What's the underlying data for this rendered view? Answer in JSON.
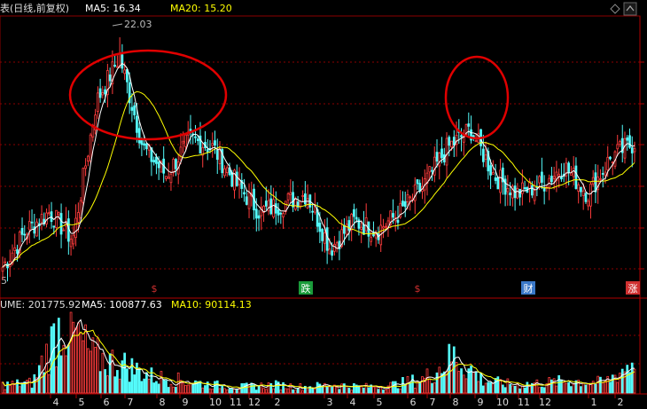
{
  "header": {
    "prefix": "表(日线,前复权)",
    "ma5_label": "MA5: 16.34",
    "ma20_label": "MA20: 15.20"
  },
  "price_panel": {
    "peak_label": "22.03",
    "left_tick": "5"
  },
  "event_markers": [
    {
      "label": "$",
      "color": "#d03030"
    },
    {
      "label": "跌",
      "color": "#1a9c3a"
    },
    {
      "label": "$",
      "color": "#d03030"
    },
    {
      "label": "财",
      "color": "#3a78c8"
    },
    {
      "label": "涨",
      "color": "#d03030"
    }
  ],
  "volume_header": {
    "vol_label": "UME: 201775.92",
    "ma5_label": "MA5: 100877.63",
    "ma10_label": "MA10: 90114.13"
  },
  "x_axis_months": [
    "4",
    "5",
    "6",
    "7",
    "8",
    "9",
    "10",
    "11",
    "12",
    "2",
    "3",
    "4",
    "5",
    "6",
    "7",
    "8",
    "9",
    "10",
    "11",
    "12",
    "1",
    "2"
  ],
  "colors": {
    "background": "#000000",
    "up": "#ff3c3c",
    "down": "#54fcfc",
    "ma5": "#ffffff",
    "ma20": "#ffff00",
    "grid": "#8b0000",
    "annotation": "#e00000"
  },
  "chart_data": {
    "type": "candlestick",
    "title": "",
    "indicators": [
      "MA5",
      "MA20"
    ],
    "peak_high": 22.03,
    "ma5_last": 16.34,
    "ma20_last": 15.2,
    "close_series": [
      {
        "period": "start",
        "value": 9.5
      },
      {
        "period": "4",
        "value": 11.5
      },
      {
        "period": "5",
        "value": 12.5
      },
      {
        "period": "5-late",
        "value": 11.0
      },
      {
        "period": "6",
        "value": 18.5
      },
      {
        "period": "6-peak",
        "value": 21.0
      },
      {
        "period": "7",
        "value": 16.0
      },
      {
        "period": "7-late",
        "value": 14.5
      },
      {
        "period": "8",
        "value": 16.5
      },
      {
        "period": "9",
        "value": 16.0
      },
      {
        "period": "10",
        "value": 14.0
      },
      {
        "period": "11",
        "value": 12.5
      },
      {
        "period": "12",
        "value": 13.0
      },
      {
        "period": "2",
        "value": 13.5
      },
      {
        "period": "3",
        "value": 10.5
      },
      {
        "period": "4",
        "value": 12.0
      },
      {
        "period": "5",
        "value": 11.5
      },
      {
        "period": "6",
        "value": 12.5
      },
      {
        "period": "7",
        "value": 14.0
      },
      {
        "period": "8",
        "value": 16.0
      },
      {
        "period": "8-spike",
        "value": 17.0
      },
      {
        "period": "9",
        "value": 14.5
      },
      {
        "period": "10",
        "value": 13.5
      },
      {
        "period": "11",
        "value": 14.0
      },
      {
        "period": "12",
        "value": 15.0
      },
      {
        "period": "1",
        "value": 13.5
      },
      {
        "period": "2",
        "value": 15.5
      },
      {
        "period": "end",
        "value": 16.3
      }
    ],
    "volume_series": [
      {
        "period": "4",
        "value": 20000
      },
      {
        "period": "5",
        "value": 25000
      },
      {
        "period": "6",
        "value": 180000
      },
      {
        "period": "7",
        "value": 90000
      },
      {
        "period": "8",
        "value": 70000
      },
      {
        "period": "9",
        "value": 40000
      },
      {
        "period": "10",
        "value": 30000
      },
      {
        "period": "11",
        "value": 20000
      },
      {
        "period": "12",
        "value": 15000
      },
      {
        "period": "2",
        "value": 20000
      },
      {
        "period": "3",
        "value": 15000
      },
      {
        "period": "4",
        "value": 20000
      },
      {
        "period": "5",
        "value": 15000
      },
      {
        "period": "6",
        "value": 20000
      },
      {
        "period": "7",
        "value": 35000
      },
      {
        "period": "8",
        "value": 90000
      },
      {
        "period": "9",
        "value": 30000
      },
      {
        "period": "10",
        "value": 20000
      },
      {
        "period": "11",
        "value": 25000
      },
      {
        "period": "12",
        "value": 30000
      },
      {
        "period": "1",
        "value": 25000
      },
      {
        "period": "2",
        "value": 80000
      }
    ],
    "volume_last": 201775.92,
    "volume_ma5": 100877.63,
    "volume_ma10": 90114.13,
    "annotations": [
      "ellipse around first peak (months 5–9)",
      "ellipse around second spike (month 8)"
    ]
  }
}
